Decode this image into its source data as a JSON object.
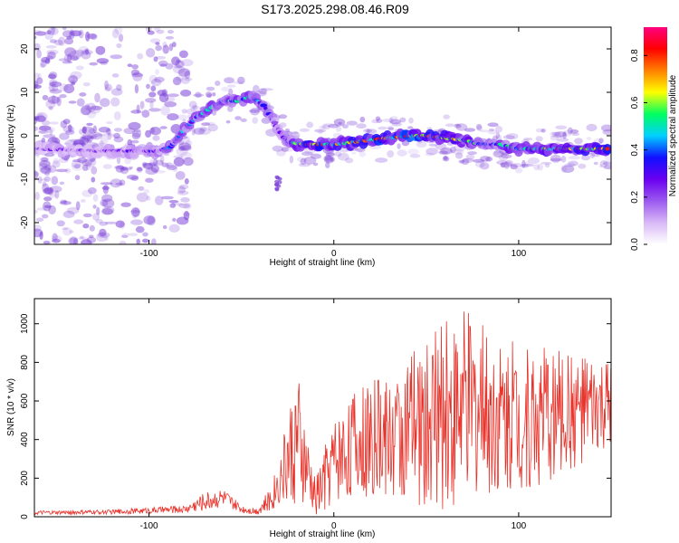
{
  "title": "S173.2025.298.08.46.R09",
  "colors": {
    "snr_line": "#e8332b",
    "spectral_background_scatter": "#7a3fd8",
    "axis": "#000000"
  },
  "chart_data": [
    {
      "type": "heatmap",
      "xlabel": "Height of straight line (km)",
      "ylabel": "Frequency (Hz)",
      "xlim": [
        -162,
        150
      ],
      "ylim": [
        -25,
        25
      ],
      "xticks": [
        -100,
        0,
        100
      ],
      "yticks": [
        -20,
        -10,
        0,
        10,
        20
      ],
      "colorbar": {
        "label": "Normalized spectral amplitude",
        "range": [
          0,
          0.92
        ],
        "ticks": [
          0.0,
          0.2,
          0.4,
          0.6,
          0.8
        ],
        "colormap": [
          "#ffffff",
          "#d9b8f7",
          "#9b59ef",
          "#6a00f0",
          "#1010ff",
          "#00d0ff",
          "#00ff60",
          "#ffff00",
          "#ff8000",
          "#ff0000",
          "#ff0080"
        ]
      },
      "ridge": {
        "x": [
          -162,
          -130,
          -110,
          -95,
          -88,
          -82,
          -75,
          -68,
          -60,
          -52,
          -45,
          -38,
          -32,
          -28,
          -24,
          -20,
          -15,
          -10,
          0,
          10,
          20,
          30,
          40,
          50,
          60,
          70,
          80,
          90,
          100,
          110,
          120,
          130,
          140,
          148
        ],
        "freq": [
          -3,
          -3.5,
          -3.5,
          -3.5,
          -2.5,
          1,
          4,
          6,
          8,
          8,
          9,
          7,
          3,
          0,
          -1.5,
          -1.8,
          -2,
          -2,
          -2,
          -1.5,
          -1,
          -0.5,
          0,
          0,
          -0.5,
          -1,
          -2,
          -2,
          -3,
          -3,
          -3,
          -3,
          -3,
          -3
        ],
        "amplitude": [
          0.25,
          0.25,
          0.3,
          0.35,
          0.4,
          0.45,
          0.45,
          0.5,
          0.5,
          0.5,
          0.5,
          0.45,
          0.3,
          0.3,
          0.35,
          0.7,
          0.8,
          0.75,
          0.75,
          0.75,
          0.8,
          0.8,
          0.85,
          0.9,
          0.7,
          0.6,
          0.5,
          0.5,
          0.6,
          0.65,
          0.7,
          0.75,
          0.8,
          0.8
        ]
      }
    },
    {
      "type": "line",
      "xlabel": "Height of straight line (km)",
      "ylabel": "SNR (10 * v/v)",
      "xlim": [
        -162,
        150
      ],
      "ylim": [
        0,
        1130
      ],
      "xticks": [
        -100,
        0,
        100
      ],
      "yticks": [
        0,
        200,
        400,
        600,
        800,
        1000
      ],
      "series": [
        {
          "name": "SNR",
          "envelope_x": [
            -162,
            -120,
            -80,
            -70,
            -60,
            -50,
            -42,
            -35,
            -30,
            -25,
            -20,
            -15,
            -10,
            -5,
            0,
            10,
            20,
            30,
            40,
            50,
            60,
            70,
            80,
            90,
            100,
            110,
            120,
            130,
            140,
            150
          ],
          "envelope_mid": [
            20,
            25,
            40,
            80,
            100,
            40,
            30,
            80,
            180,
            300,
            400,
            250,
            100,
            200,
            300,
            380,
            400,
            420,
            450,
            480,
            520,
            580,
            560,
            540,
            520,
            520,
            540,
            550,
            560,
            560
          ],
          "envelope_amp": [
            10,
            12,
            20,
            50,
            50,
            20,
            20,
            60,
            120,
            240,
            380,
            200,
            100,
            180,
            220,
            280,
            300,
            320,
            400,
            450,
            500,
            520,
            450,
            400,
            380,
            380,
            340,
            300,
            260,
            240
          ]
        }
      ]
    }
  ]
}
